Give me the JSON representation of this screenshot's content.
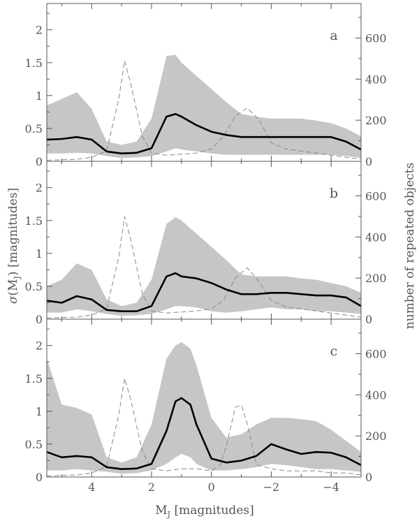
{
  "chart_data": {
    "type": "area",
    "xlabel": "M_J [magnitudes]",
    "ylabel_left": "σ(M_J) [magnitudes]",
    "ylabel_right": "number of repeated objects",
    "xlim": [
      5.5,
      -5.0
    ],
    "ylim_left": [
      0,
      2.4
    ],
    "ylim_right": [
      0,
      768
    ],
    "x_ticks": [
      "4",
      "2",
      "0",
      "−2",
      "−4"
    ],
    "x_tick_values": [
      4,
      2,
      0,
      -2,
      -4
    ],
    "y_ticks_left": [
      "0",
      "0.5",
      "1",
      "1.5",
      "2"
    ],
    "y_tick_values_left": [
      0,
      0.5,
      1,
      1.5,
      2
    ],
    "y_ticks_right": [
      "0",
      "200",
      "400",
      "600"
    ],
    "y_tick_values_right": [
      0,
      200,
      400,
      600
    ],
    "colors": {
      "band": "#c6c6c6",
      "mean": "#000000",
      "count": "#888888",
      "axis": "#555555"
    },
    "panels": [
      {
        "label": "a",
        "x": [
          5.5,
          5.0,
          4.5,
          4.0,
          3.5,
          3.0,
          2.5,
          2.0,
          1.5,
          1.2,
          1.0,
          0.5,
          0.0,
          -0.5,
          -1.0,
          -1.5,
          -2.0,
          -2.5,
          -3.0,
          -3.5,
          -4.0,
          -4.5,
          -5.0
        ],
        "sigma_mean": [
          0.33,
          0.34,
          0.37,
          0.33,
          0.15,
          0.12,
          0.13,
          0.2,
          0.68,
          0.72,
          0.68,
          0.55,
          0.45,
          0.4,
          0.37,
          0.37,
          0.37,
          0.37,
          0.37,
          0.37,
          0.37,
          0.3,
          0.18
        ],
        "sigma_upper": [
          0.85,
          0.95,
          1.05,
          0.8,
          0.3,
          0.25,
          0.3,
          0.65,
          1.6,
          1.62,
          1.5,
          1.3,
          1.1,
          0.9,
          0.72,
          0.68,
          0.65,
          0.65,
          0.65,
          0.62,
          0.58,
          0.5,
          0.38
        ],
        "sigma_lower": [
          0.12,
          0.12,
          0.13,
          0.12,
          0.08,
          0.05,
          0.06,
          0.08,
          0.15,
          0.2,
          0.18,
          0.15,
          0.12,
          0.1,
          0.1,
          0.1,
          0.1,
          0.1,
          0.1,
          0.1,
          0.1,
          0.08,
          0.05
        ],
        "count_x": [
          5.5,
          4.5,
          4.0,
          3.5,
          3.1,
          2.9,
          2.7,
          2.3,
          2.0,
          1.5,
          1.0,
          0.5,
          0.0,
          -0.4,
          -0.8,
          -1.2,
          -1.6,
          -2.0,
          -2.5,
          -3.0,
          -3.5,
          -4.0,
          -4.5,
          -5.0
        ],
        "count": [
          5,
          10,
          20,
          50,
          300,
          490,
          380,
          120,
          40,
          30,
          35,
          40,
          60,
          120,
          220,
          260,
          200,
          90,
          60,
          50,
          40,
          30,
          20,
          10
        ]
      },
      {
        "label": "b",
        "x": [
          5.5,
          5.0,
          4.5,
          4.0,
          3.5,
          3.0,
          2.5,
          2.0,
          1.5,
          1.2,
          1.0,
          0.5,
          0.0,
          -0.5,
          -1.0,
          -1.5,
          -2.0,
          -2.5,
          -3.0,
          -3.5,
          -4.0,
          -4.5,
          -5.0
        ],
        "sigma_mean": [
          0.28,
          0.25,
          0.35,
          0.3,
          0.14,
          0.12,
          0.12,
          0.2,
          0.65,
          0.7,
          0.65,
          0.62,
          0.55,
          0.45,
          0.38,
          0.38,
          0.4,
          0.4,
          0.38,
          0.36,
          0.36,
          0.33,
          0.2
        ],
        "sigma_upper": [
          0.5,
          0.6,
          0.85,
          0.75,
          0.3,
          0.2,
          0.25,
          0.6,
          1.45,
          1.55,
          1.5,
          1.3,
          1.1,
          0.9,
          0.68,
          0.65,
          0.65,
          0.65,
          0.62,
          0.6,
          0.55,
          0.5,
          0.4
        ],
        "sigma_lower": [
          0.1,
          0.1,
          0.15,
          0.12,
          0.08,
          0.05,
          0.06,
          0.08,
          0.15,
          0.2,
          0.2,
          0.18,
          0.12,
          0.1,
          0.12,
          0.15,
          0.18,
          0.15,
          0.15,
          0.12,
          0.12,
          0.1,
          0.08
        ],
        "count_x": [
          5.5,
          4.5,
          4.0,
          3.5,
          3.1,
          2.9,
          2.7,
          2.3,
          2.0,
          1.5,
          1.0,
          0.5,
          0.0,
          -0.4,
          -0.8,
          -1.2,
          -1.6,
          -2.0,
          -2.5,
          -3.0,
          -3.5,
          -4.0,
          -4.5,
          -5.0
        ],
        "count": [
          5,
          10,
          20,
          50,
          300,
          500,
          390,
          120,
          40,
          30,
          35,
          40,
          50,
          90,
          200,
          250,
          180,
          90,
          60,
          50,
          40,
          30,
          20,
          10
        ]
      },
      {
        "label": "c",
        "x": [
          5.5,
          5.0,
          4.5,
          4.0,
          3.5,
          3.0,
          2.5,
          2.0,
          1.5,
          1.2,
          1.0,
          0.7,
          0.5,
          0.0,
          -0.5,
          -1.0,
          -1.5,
          -2.0,
          -2.5,
          -3.0,
          -3.5,
          -4.0,
          -4.5,
          -5.0
        ],
        "sigma_mean": [
          0.38,
          0.3,
          0.32,
          0.3,
          0.15,
          0.12,
          0.13,
          0.2,
          0.7,
          1.15,
          1.2,
          1.1,
          0.8,
          0.28,
          0.22,
          0.25,
          0.32,
          0.5,
          0.42,
          0.35,
          0.38,
          0.37,
          0.3,
          0.18
        ],
        "sigma_upper": [
          1.8,
          1.1,
          1.05,
          0.95,
          0.3,
          0.22,
          0.3,
          0.8,
          1.8,
          2.0,
          2.05,
          1.95,
          1.7,
          0.9,
          0.6,
          0.65,
          0.8,
          0.9,
          0.9,
          0.88,
          0.85,
          0.72,
          0.55,
          0.38
        ],
        "sigma_lower": [
          0.1,
          0.1,
          0.12,
          0.1,
          0.08,
          0.05,
          0.06,
          0.1,
          0.2,
          0.3,
          0.35,
          0.3,
          0.2,
          0.1,
          0.1,
          0.12,
          0.15,
          0.2,
          0.18,
          0.15,
          0.12,
          0.12,
          0.1,
          0.08
        ],
        "count_x": [
          5.5,
          4.5,
          4.0,
          3.5,
          3.1,
          2.9,
          2.7,
          2.3,
          2.0,
          1.5,
          1.0,
          0.5,
          0.0,
          -0.3,
          -0.5,
          -0.8,
          -1.0,
          -1.2,
          -1.5,
          -2.0,
          -2.5,
          -3.0,
          -3.5,
          -4.0,
          -4.5,
          -5.0
        ],
        "count": [
          5,
          10,
          20,
          50,
          300,
          480,
          380,
          120,
          40,
          30,
          40,
          40,
          30,
          60,
          150,
          340,
          350,
          260,
          60,
          40,
          30,
          30,
          30,
          20,
          20,
          10
        ]
      }
    ]
  }
}
